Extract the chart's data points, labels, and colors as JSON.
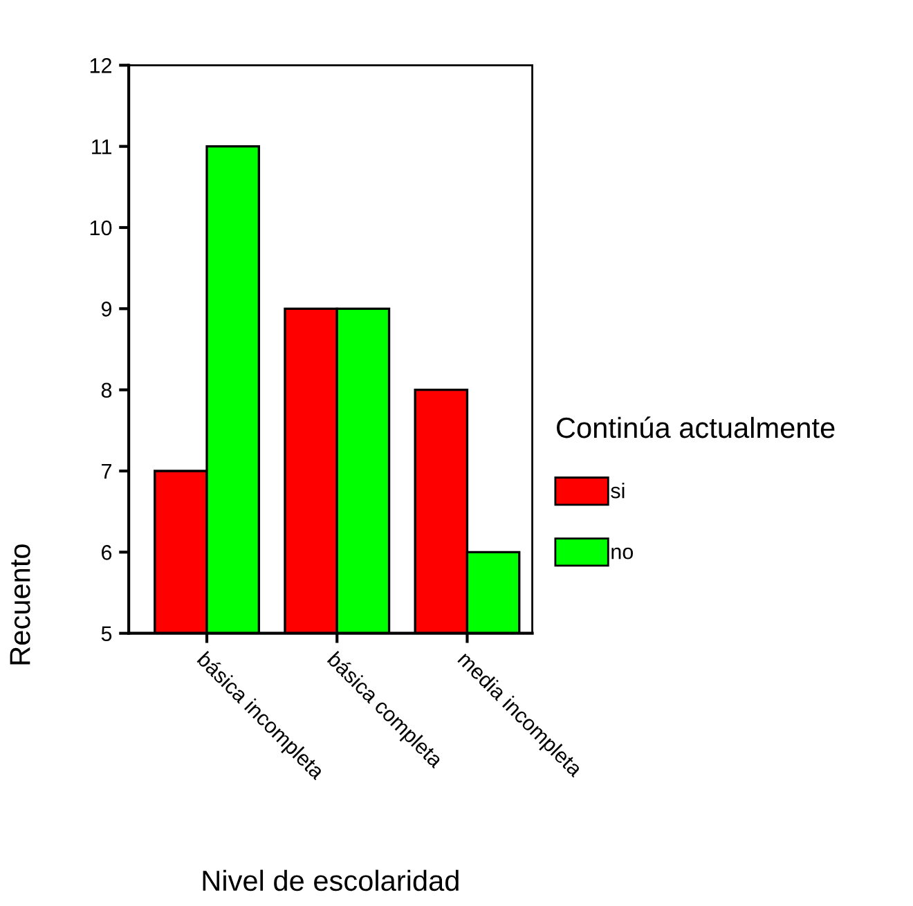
{
  "chart_data": {
    "type": "bar",
    "xlabel": "Nivel de escolaridad",
    "ylabel": "Recuento",
    "legend_title": "Continúa actualmente",
    "categories": [
      "básica incompleta",
      "básica completa",
      "media incompleta"
    ],
    "series": [
      {
        "name": "si",
        "color": "#ff0000",
        "values": [
          7,
          9,
          8
        ]
      },
      {
        "name": "no",
        "color": "#00ff00",
        "values": [
          11,
          9,
          6
        ]
      }
    ],
    "ylim": [
      5,
      12
    ],
    "yticks": [
      5,
      6,
      7,
      8,
      9,
      10,
      11,
      12
    ],
    "grid": false,
    "legend": "right"
  }
}
